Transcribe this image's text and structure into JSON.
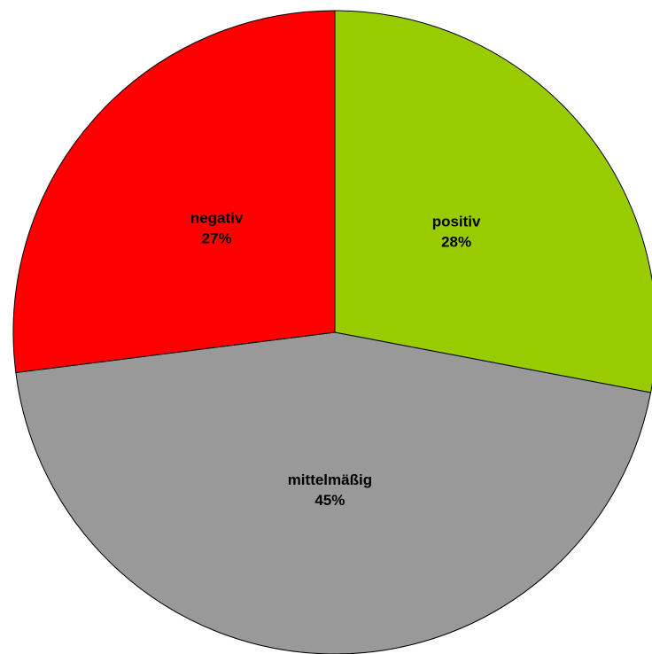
{
  "chart_data": {
    "type": "pie",
    "title": "",
    "slices": [
      {
        "label": "positiv",
        "percent_label": "28%",
        "value": 28,
        "color": "#99CC00"
      },
      {
        "label": "mittelmäßig",
        "percent_label": "45%",
        "value": 45,
        "color": "#999999"
      },
      {
        "label": "negativ",
        "percent_label": "27%",
        "value": 27,
        "color": "#FF0000"
      }
    ],
    "start_angle_deg": 0,
    "direction": "clockwise",
    "legend": "none"
  }
}
